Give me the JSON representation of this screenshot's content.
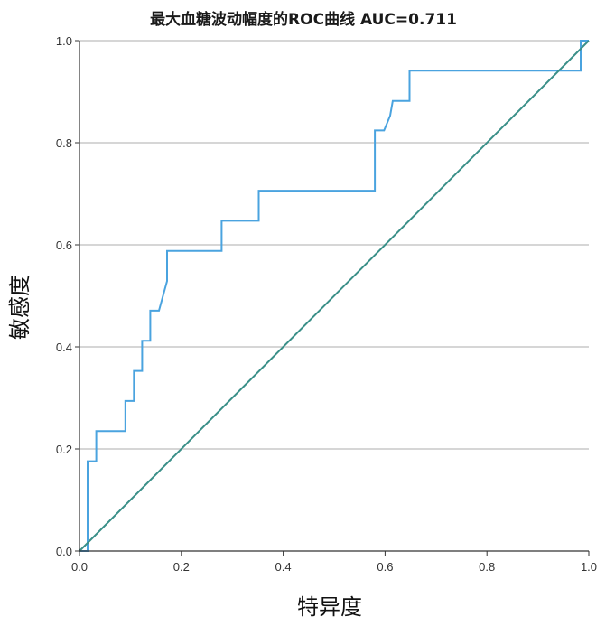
{
  "chart_data": {
    "type": "line",
    "title": "最大血糖波动幅度的ROC曲线  AUC=0.711",
    "xlabel": "特异度",
    "ylabel": "敏感度",
    "xlim": [
      0,
      1
    ],
    "ylim": [
      0,
      1
    ],
    "x_ticks": [
      "0.0",
      "0.2",
      "0.4",
      "0.6",
      "0.8",
      "1.0"
    ],
    "y_ticks": [
      "0.0",
      "0.2",
      "0.4",
      "0.6",
      "0.8",
      "1.0"
    ],
    "grid": "horizontal",
    "legend": "none",
    "series": [
      {
        "color": "#4aa3df",
        "x": [
          0,
          0.016,
          0.016,
          0.033,
          0.033,
          0.09,
          0.09,
          0.107,
          0.107,
          0.123,
          0.123,
          0.139,
          0.139,
          0.156,
          0.164,
          0.172,
          0.172,
          0.279,
          0.279,
          0.352,
          0.352,
          0.58,
          0.58,
          0.598,
          0.61,
          0.615,
          0.648,
          0.648,
          0.984,
          0.984,
          1.0
        ],
        "y": [
          0,
          0,
          0.176,
          0.176,
          0.235,
          0.235,
          0.294,
          0.294,
          0.353,
          0.353,
          0.412,
          0.412,
          0.471,
          0.471,
          0.5,
          0.529,
          0.588,
          0.588,
          0.647,
          0.647,
          0.706,
          0.706,
          0.824,
          0.824,
          0.853,
          0.882,
          0.882,
          0.941,
          0.941,
          1.0,
          1.0
        ]
      },
      {
        "color": "#3a8f88",
        "x": [
          0,
          1
        ],
        "y": [
          0,
          1
        ]
      }
    ]
  }
}
